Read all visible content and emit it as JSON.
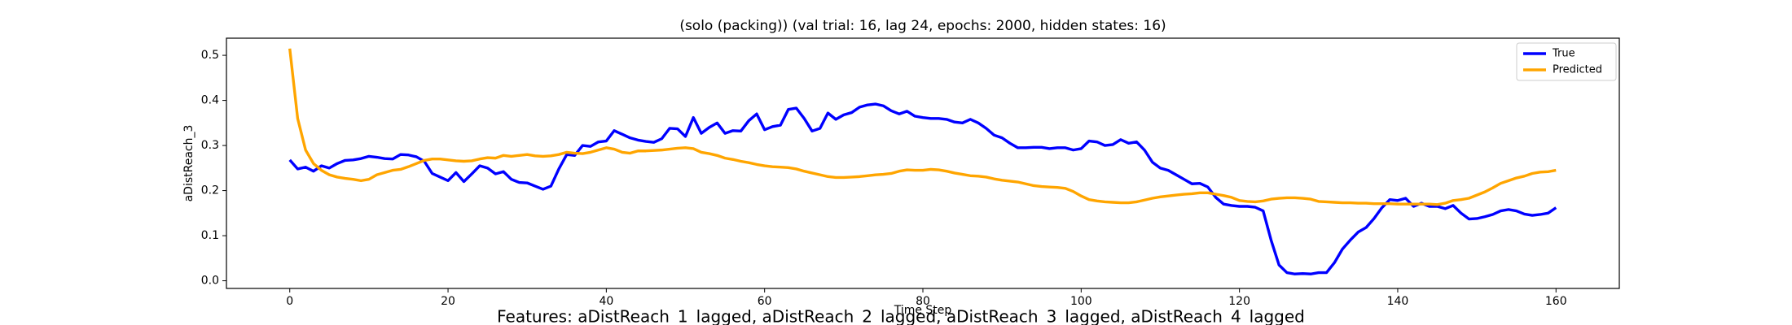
{
  "chart_data": {
    "type": "line",
    "title": "(solo (packing)) (val trial: 16, lag 24, epochs: 2000, hidden states: 16)",
    "xlabel": "Time Step",
    "ylabel": "aDistReach_3",
    "footer": "Features: aDistReach_1_lagged, aDistReach_2_lagged, aDistReach_3_lagged, aDistReach_4_lagged",
    "legend": "upper right",
    "x": [
      0,
      1,
      2,
      3,
      4,
      5,
      6,
      7,
      8,
      9,
      10,
      11,
      12,
      13,
      14,
      15,
      16,
      17,
      18,
      19,
      20,
      21,
      22,
      23,
      24,
      25,
      26,
      27,
      28,
      29,
      30,
      31,
      32,
      33,
      34,
      35,
      36,
      37,
      38,
      39,
      40,
      41,
      42,
      43,
      44,
      45,
      46,
      47,
      48,
      49,
      50,
      51,
      52,
      53,
      54,
      55,
      56,
      57,
      58,
      59,
      60,
      61,
      62,
      63,
      64,
      65,
      66,
      67,
      68,
      69,
      70,
      71,
      72,
      73,
      74,
      75,
      76,
      77,
      78,
      79,
      80,
      81,
      82,
      83,
      84,
      85,
      86,
      87,
      88,
      89,
      90,
      91,
      92,
      93,
      94,
      95,
      96,
      97,
      98,
      99,
      100,
      101,
      102,
      103,
      104,
      105,
      106,
      107,
      108,
      109,
      110,
      111,
      112,
      113,
      114,
      115,
      116,
      117,
      118,
      119,
      120,
      121,
      122,
      123,
      124,
      125,
      126,
      127,
      128,
      129,
      130,
      131,
      132,
      133,
      134,
      135,
      136,
      137,
      138,
      139,
      140,
      141,
      142,
      143,
      144,
      145,
      146,
      147,
      148,
      149,
      150,
      151,
      152,
      153,
      154,
      155,
      156,
      157,
      158,
      159,
      160
    ],
    "series": [
      {
        "name": "True",
        "color": "#0000ff",
        "values": [
          0.268,
          0.248,
          0.252,
          0.243,
          0.255,
          0.25,
          0.26,
          0.267,
          0.268,
          0.271,
          0.276,
          0.274,
          0.271,
          0.27,
          0.28,
          0.279,
          0.275,
          0.265,
          0.238,
          0.23,
          0.222,
          0.24,
          0.22,
          0.237,
          0.255,
          0.25,
          0.237,
          0.242,
          0.225,
          0.218,
          0.217,
          0.21,
          0.203,
          0.21,
          0.248,
          0.28,
          0.278,
          0.3,
          0.298,
          0.308,
          0.31,
          0.333,
          0.325,
          0.317,
          0.312,
          0.309,
          0.307,
          0.315,
          0.338,
          0.337,
          0.32,
          0.362,
          0.327,
          0.34,
          0.35,
          0.327,
          0.333,
          0.332,
          0.355,
          0.37,
          0.335,
          0.342,
          0.345,
          0.38,
          0.383,
          0.36,
          0.332,
          0.338,
          0.372,
          0.358,
          0.368,
          0.373,
          0.385,
          0.39,
          0.392,
          0.388,
          0.377,
          0.37,
          0.376,
          0.365,
          0.362,
          0.36,
          0.36,
          0.358,
          0.352,
          0.35,
          0.358,
          0.35,
          0.338,
          0.323,
          0.317,
          0.305,
          0.295,
          0.295,
          0.296,
          0.296,
          0.293,
          0.295,
          0.295,
          0.29,
          0.293,
          0.31,
          0.308,
          0.3,
          0.302,
          0.313,
          0.305,
          0.308,
          0.29,
          0.263,
          0.25,
          0.245,
          0.235,
          0.225,
          0.215,
          0.216,
          0.208,
          0.185,
          0.17,
          0.167,
          0.165,
          0.165,
          0.163,
          0.155,
          0.09,
          0.035,
          0.018,
          0.015,
          0.016,
          0.015,
          0.018,
          0.018,
          0.04,
          0.07,
          0.09,
          0.108,
          0.118,
          0.138,
          0.162,
          0.18,
          0.178,
          0.183,
          0.165,
          0.172,
          0.165,
          0.165,
          0.16,
          0.167,
          0.15,
          0.137,
          0.138,
          0.142,
          0.147,
          0.155,
          0.158,
          0.155,
          0.148,
          0.145,
          0.147,
          0.15,
          0.162
        ]
      },
      {
        "name": "Predicted",
        "color": "#ffa500",
        "values": [
          0.515,
          0.36,
          0.29,
          0.26,
          0.245,
          0.235,
          0.23,
          0.227,
          0.225,
          0.222,
          0.225,
          0.235,
          0.24,
          0.245,
          0.247,
          0.253,
          0.26,
          0.267,
          0.27,
          0.27,
          0.268,
          0.266,
          0.265,
          0.266,
          0.27,
          0.273,
          0.272,
          0.278,
          0.276,
          0.278,
          0.28,
          0.277,
          0.276,
          0.277,
          0.28,
          0.285,
          0.283,
          0.282,
          0.285,
          0.29,
          0.295,
          0.292,
          0.285,
          0.283,
          0.288,
          0.288,
          0.289,
          0.29,
          0.292,
          0.294,
          0.295,
          0.293,
          0.285,
          0.282,
          0.278,
          0.272,
          0.269,
          0.265,
          0.262,
          0.258,
          0.255,
          0.253,
          0.252,
          0.251,
          0.248,
          0.243,
          0.239,
          0.235,
          0.231,
          0.229,
          0.229,
          0.23,
          0.231,
          0.233,
          0.235,
          0.236,
          0.238,
          0.243,
          0.246,
          0.245,
          0.245,
          0.247,
          0.246,
          0.243,
          0.239,
          0.236,
          0.233,
          0.232,
          0.23,
          0.226,
          0.223,
          0.221,
          0.219,
          0.215,
          0.211,
          0.209,
          0.208,
          0.207,
          0.205,
          0.198,
          0.188,
          0.18,
          0.177,
          0.175,
          0.174,
          0.173,
          0.173,
          0.175,
          0.179,
          0.183,
          0.186,
          0.188,
          0.19,
          0.192,
          0.193,
          0.195,
          0.195,
          0.192,
          0.189,
          0.185,
          0.178,
          0.176,
          0.175,
          0.177,
          0.181,
          0.183,
          0.184,
          0.184,
          0.183,
          0.181,
          0.176,
          0.175,
          0.174,
          0.173,
          0.173,
          0.172,
          0.172,
          0.171,
          0.171,
          0.171,
          0.17,
          0.17,
          0.17,
          0.17,
          0.17,
          0.169,
          0.172,
          0.178,
          0.18,
          0.183,
          0.19,
          0.197,
          0.206,
          0.216,
          0.222,
          0.228,
          0.232,
          0.238,
          0.241,
          0.242,
          0.245
        ]
      }
    ],
    "xlim": [
      -8,
      168
    ],
    "ylim": [
      -0.017,
      0.538
    ],
    "xticks": [
      0,
      20,
      40,
      60,
      80,
      100,
      120,
      140,
      160
    ],
    "yticks": [
      {
        "value": 0,
        "label": "0.0"
      },
      0.1,
      0.2,
      0.3,
      0.4,
      0.5
    ]
  }
}
